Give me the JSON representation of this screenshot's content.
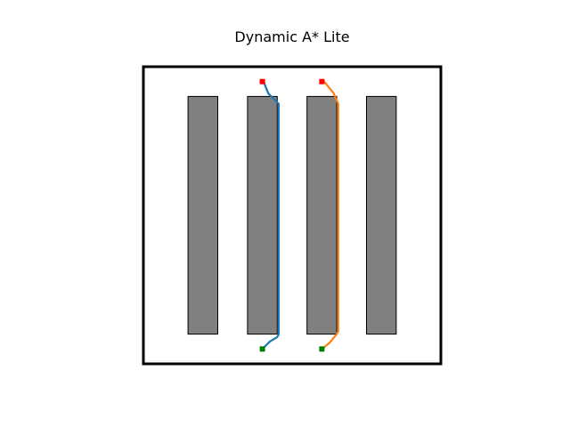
{
  "figure": {
    "title": "Dynamic A* Lite"
  },
  "grid": {
    "width": 20,
    "height": 20
  },
  "obstacles": [
    {
      "x": 3,
      "y": 2,
      "w": 2,
      "h": 16
    },
    {
      "x": 7,
      "y": 2,
      "w": 2,
      "h": 16
    },
    {
      "x": 11,
      "y": 2,
      "w": 2,
      "h": 16
    },
    {
      "x": 15,
      "y": 2,
      "w": 2,
      "h": 16
    }
  ],
  "agents": [
    {
      "start": [
        8,
        19
      ],
      "goal": [
        8,
        1
      ],
      "path": [
        [
          8,
          19
        ],
        [
          8.5,
          18.5
        ],
        [
          9,
          18.2
        ],
        [
          9.1,
          18
        ],
        [
          9.1,
          2.5
        ],
        [
          8.4,
          1.8
        ],
        [
          8.1,
          1.05
        ]
      ]
    },
    {
      "start": [
        12,
        19
      ],
      "goal": [
        12,
        1
      ],
      "path": [
        [
          12,
          19
        ],
        [
          12.5,
          18.6
        ],
        [
          13,
          18
        ],
        [
          13.1,
          17.8
        ],
        [
          13.1,
          2.5
        ],
        [
          12.8,
          1.8
        ],
        [
          12.2,
          1.05
        ]
      ]
    }
  ],
  "colors": {
    "obstacle_fill": "#808080",
    "obstacle_stroke": "#000000",
    "border": "#000000",
    "start_marker": "#008000",
    "goal_marker": "#ff0000",
    "path_agent_1": "#1f77b4",
    "path_agent_2": "#ff7f0e"
  }
}
